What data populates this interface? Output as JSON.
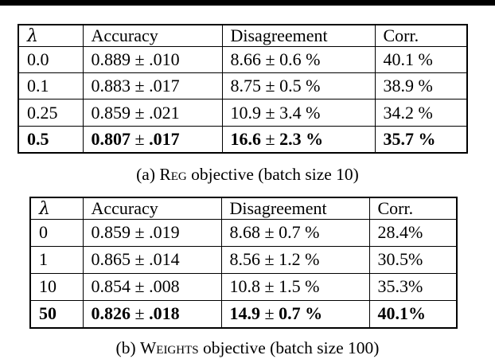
{
  "page": {
    "background": "#ffffff",
    "text_color": "#000000",
    "top_rule_color": "#000000"
  },
  "tables": [
    {
      "caption": {
        "pre": "(a) ",
        "smallcaps": "Reg",
        "post": " objective (batch size 10)"
      },
      "columns": [
        "λ",
        "Accuracy",
        "Disagreement",
        "Corr."
      ],
      "rows": [
        {
          "cells": [
            "0.0",
            "0.889 ± .010",
            "8.66 ± 0.6 %",
            "40.1 %"
          ],
          "bold": false
        },
        {
          "cells": [
            "0.1",
            "0.883 ± .017",
            "8.75 ± 0.5 %",
            "38.9 %"
          ],
          "bold": false
        },
        {
          "cells": [
            "0.25",
            "0.859 ± .021",
            "10.9 ± 3.4 %",
            "34.2 %"
          ],
          "bold": false
        },
        {
          "cells": [
            "0.5",
            "0.807 ± .017",
            "16.6 ± 2.3 %",
            "35.7 %"
          ],
          "bold": true
        }
      ]
    },
    {
      "caption": {
        "pre": "(b) ",
        "smallcaps": "Weights",
        "post": " objective (batch size 100)"
      },
      "columns": [
        "λ",
        "Accuracy",
        "Disagreement",
        "Corr."
      ],
      "rows": [
        {
          "cells": [
            "0",
            "0.859 ± .019",
            "8.68 ± 0.7 %",
            "28.4%"
          ],
          "bold": false
        },
        {
          "cells": [
            "1",
            "0.865 ± .014",
            "8.56 ± 1.2 %",
            "30.5%"
          ],
          "bold": false
        },
        {
          "cells": [
            "10",
            "0.854 ± .008",
            "10.8 ± 1.5 %",
            "35.3%"
          ],
          "bold": false
        },
        {
          "cells": [
            "50",
            "0.826 ± .018",
            "14.9 ± 0.7 %",
            "40.1%"
          ],
          "bold": true
        }
      ]
    }
  ]
}
